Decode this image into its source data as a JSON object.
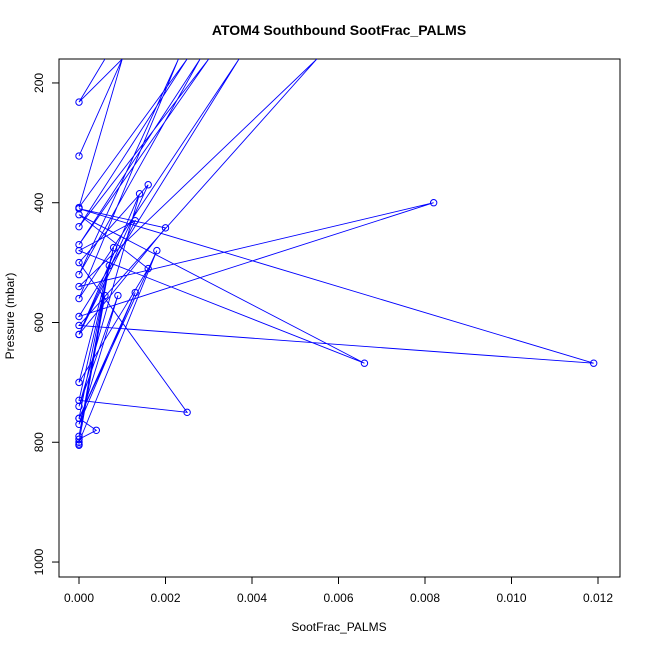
{
  "chart_data": {
    "type": "line",
    "title": "ATOM4 Southbound SootFrac_PALMS",
    "xlabel": "SootFrac_PALMS",
    "ylabel": "Pressure (mbar)",
    "xlim": [
      0,
      0.012
    ],
    "ylim": [
      1025,
      160
    ],
    "y_axis_inverted": true,
    "x_ticks": [
      "0.000",
      "0.002",
      "0.004",
      "0.006",
      "0.008",
      "0.010",
      "0.012"
    ],
    "x_tick_values": [
      0,
      0.002,
      0.004,
      0.006,
      0.008,
      0.01,
      0.012
    ],
    "y_ticks": [
      "200",
      "400",
      "600",
      "800",
      "1000"
    ],
    "y_tick_values": [
      200,
      400,
      600,
      800,
      1000
    ],
    "grid": false,
    "legend": "none",
    "series_color": "#0000ff",
    "series": [
      {
        "marker": "open-circle",
        "x": [
          0.0006,
          0.0,
          0.001,
          0.0,
          0.001,
          0.0,
          0.0025,
          0.0,
          0.003,
          0.0,
          0.0028,
          0.0,
          0.0023,
          0.0,
          0.0037,
          0.0,
          0.0082,
          0.0,
          0.0055,
          0.0,
          0.0119,
          0.0,
          0.002,
          0.0,
          0.0013,
          0.0,
          0.0066,
          0.0,
          0.0016,
          0.0,
          0.0008,
          0.0,
          0.0025,
          0.0,
          0.0016,
          0.0,
          0.0014,
          0.0,
          0.0009,
          0.0,
          0.0013,
          0.0,
          0.0007,
          0.0,
          0.0006,
          0.0,
          0.0018,
          0.0,
          0.0004,
          0.0,
          0.0,
          0.0
        ],
        "y": [
          160,
          232,
          160,
          322,
          160,
          408,
          160,
          440,
          160,
          470,
          160,
          520,
          160,
          560,
          160,
          590,
          400,
          540,
          160,
          605,
          668,
          410,
          442,
          620,
          430,
          480,
          668,
          420,
          510,
          700,
          475,
          730,
          750,
          500,
          370,
          620,
          385,
          740,
          555,
          770,
          550,
          760,
          505,
          790,
          555,
          800,
          480,
          760,
          780,
          795,
          803,
          805
        ]
      }
    ]
  }
}
